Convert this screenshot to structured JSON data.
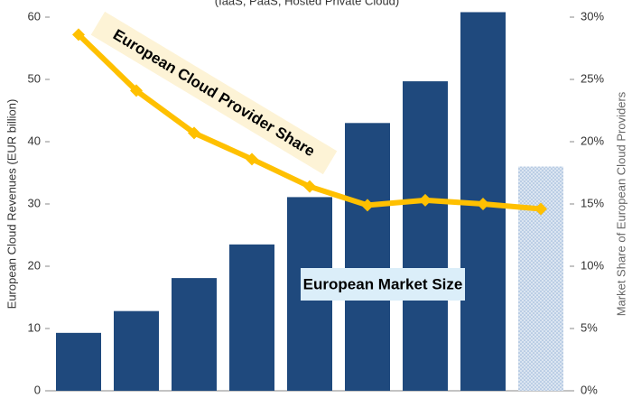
{
  "chart_data": {
    "type": "bar",
    "subtitle": "(IaaS, PaaS, Hosted Private Cloud)",
    "y_label": "European Cloud Revenues (EUR billion)",
    "y2_label": "Market Share of European Cloud Providers",
    "categories": [
      null,
      null,
      null,
      null,
      null,
      null,
      null,
      null,
      null
    ],
    "series": [
      {
        "name": "European Market Size",
        "type": "bar",
        "color": "#1f497d",
        "bar_styles": [
          "solid",
          "solid",
          "solid",
          "solid",
          "solid",
          "solid",
          "solid",
          "solid",
          "hatched"
        ],
        "values": [
          9.3,
          12.8,
          18.1,
          23.5,
          31.1,
          43,
          49.7,
          60.8,
          36
        ]
      },
      {
        "name": "European Cloud Provider Share",
        "type": "line",
        "axis": "y2",
        "color": "#ffc000",
        "values": [
          28.6,
          24.1,
          20.7,
          18.6,
          16.4,
          14.9,
          15.3,
          15.0,
          14.6
        ]
      }
    ],
    "ylim": [
      0,
      60
    ],
    "yticks": [
      0,
      10,
      20,
      30,
      40,
      50,
      60
    ],
    "y2lim": [
      0,
      30
    ],
    "y2ticks": [
      {
        "value": 0,
        "label": "0%"
      },
      {
        "value": 5,
        "label": "5%"
      },
      {
        "value": 10,
        "label": "10%"
      },
      {
        "value": 15,
        "label": "15%"
      },
      {
        "value": 20,
        "label": "20%"
      },
      {
        "value": 25,
        "label": "25%"
      },
      {
        "value": 30,
        "label": "30%"
      }
    ]
  }
}
